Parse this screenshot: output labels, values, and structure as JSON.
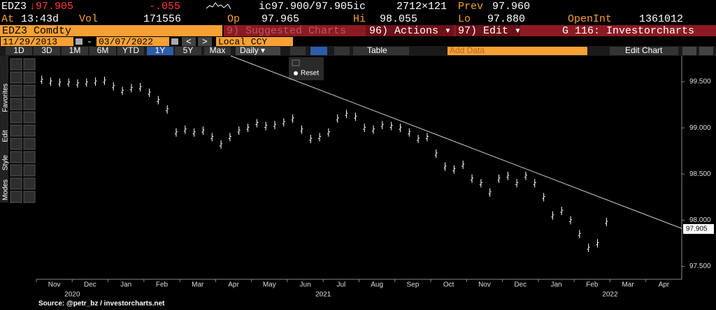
{
  "header": {
    "row1": {
      "ticker": "EDZ3",
      "last": "↓97.905",
      "change": "-.055",
      "bidask": "ic97.900/97.905ic",
      "size": "2712×121",
      "prev_label": "Prev",
      "prev": "97.960"
    },
    "row2": {
      "at_label": "At",
      "time": "13:43d",
      "vol_label": "Vol",
      "vol": "171556",
      "op_label": "Op",
      "op": "97.965",
      "hi_label": "Hi",
      "hi": "98.055",
      "lo_label": "Lo",
      "lo": "97.880",
      "oi_label": "OpenInt",
      "oi": "1361012"
    },
    "row3": {
      "security": "EDZ3 Comdty",
      "suggested": "9) Suggested Charts",
      "actions": "96) Actions ▾",
      "edit": "97) Edit ▾",
      "chart_name": "G 116: Investorcharts"
    },
    "row4": {
      "start_date": "11/29/2013",
      "dash": "-",
      "end_date": "03/07/2022",
      "prev_btn": "<",
      "next_btn": ">",
      "currency": "Local CCY"
    },
    "row5": {
      "periods": [
        "1D",
        "3D",
        "1M",
        "6M",
        "YTD",
        "1Y",
        "5Y",
        "Max"
      ],
      "selected": "1Y",
      "frequency": "Daily ▾",
      "table": "Table",
      "add_data": "Add Data",
      "edit_chart": "Edit Chart"
    }
  },
  "side_tabs": [
    "Favorites",
    "Edit",
    "Style",
    "Modes"
  ],
  "popup": {
    "reset": "Reset"
  },
  "source": "Source: @petr_bz / investorcharts.net",
  "chart_data": {
    "type": "bar-price",
    "categories": [
      "Nov",
      "Dec",
      "Jan",
      "Feb",
      "Mar",
      "Apr",
      "May",
      "Jun",
      "Jul",
      "Aug",
      "Sep",
      "Oct",
      "Nov",
      "Dec",
      "Jan",
      "Feb",
      "Mar",
      "Apr"
    ],
    "years": [
      {
        "value": 1,
        "label": "2020"
      },
      {
        "value": 8,
        "label": "2021"
      },
      {
        "value": 16,
        "label": "2022"
      }
    ],
    "xlim": [
      0,
      18
    ],
    "ylim": [
      97.36,
      99.78
    ],
    "yticks": [
      {
        "value": 97.5,
        "label": "97.500"
      },
      {
        "value": 98,
        "label": "98.000"
      },
      {
        "value": 98.5,
        "label": "98.500"
      },
      {
        "value": 99,
        "label": "99.000"
      },
      {
        "value": 99.5,
        "label": "99.500"
      }
    ],
    "color": "#ffffff",
    "series": [
      {
        "name": "EDZ3 Comdty",
        "color": "#ffffff",
        "x": [
          0.15,
          0.4,
          0.65,
          0.9,
          1.15,
          1.4,
          1.65,
          1.9,
          2.15,
          2.4,
          2.65,
          2.9,
          3.15,
          3.4,
          3.65,
          3.9,
          4.15,
          4.4,
          4.65,
          4.9,
          5.15,
          5.4,
          5.65,
          5.9,
          6.15,
          6.4,
          6.65,
          6.9,
          7.15,
          7.4,
          7.65,
          7.9,
          8.15,
          8.4,
          8.65,
          8.9,
          9.15,
          9.4,
          9.65,
          9.9,
          10.15,
          10.4,
          10.65,
          10.9,
          11.15,
          11.4,
          11.65,
          11.9,
          12.15,
          12.4,
          12.65,
          12.9,
          13.15,
          13.4,
          13.65,
          13.9,
          14.15,
          14.4,
          14.65,
          14.9,
          15.15,
          15.4,
          15.65,
          15.9
        ],
        "values": [
          99.52,
          99.5,
          99.49,
          99.49,
          99.48,
          99.49,
          99.5,
          99.51,
          99.45,
          99.4,
          99.43,
          99.44,
          99.38,
          99.3,
          99.2,
          98.95,
          98.98,
          98.95,
          98.97,
          98.9,
          98.82,
          98.9,
          98.97,
          99.0,
          99.05,
          99.02,
          99.03,
          99.06,
          99.1,
          98.98,
          98.88,
          98.9,
          98.95,
          99.1,
          99.15,
          99.12,
          99.0,
          98.98,
          99.03,
          99.02,
          99.0,
          98.95,
          98.88,
          98.9,
          98.72,
          98.58,
          98.55,
          98.6,
          98.45,
          98.4,
          98.3,
          98.45,
          98.48,
          98.4,
          98.48,
          98.4,
          98.25,
          98.05,
          98.1,
          98.0,
          97.85,
          97.7,
          97.75,
          97.98
        ]
      }
    ],
    "trendline": {
      "x": [
        5.42,
        18
      ],
      "values": [
        99.78,
        97.91
      ],
      "color": "#cccccc"
    },
    "last_price": 97.905
  }
}
